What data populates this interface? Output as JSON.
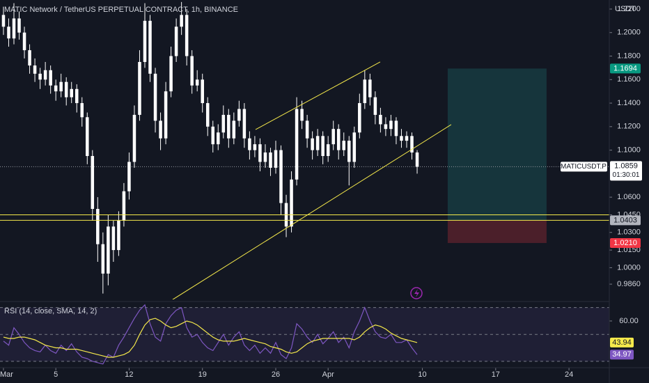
{
  "header": {
    "title": "MATIC Network / TetherUS PERPETUAL CONTRACT, 1h, BINANCE",
    "currency": "USDT"
  },
  "chart_data": [
    {
      "type": "candlestick",
      "color": "#ffffff",
      "line_color": "#f5e94b",
      "x": [
        0,
        0.5,
        1,
        1.5,
        2,
        2.5,
        3,
        3.5,
        4,
        4.5,
        5,
        5.5,
        6,
        6.5,
        7,
        7.5,
        8,
        8.5,
        9,
        9.5,
        10,
        10.5,
        11,
        11.5,
        12,
        12.5,
        13,
        13.5,
        14,
        14.5,
        15,
        15.5,
        16,
        16.5,
        17,
        17.5,
        18,
        18.5,
        19,
        19.5,
        20,
        20.5,
        21,
        21.5,
        22,
        22.5,
        23,
        23.5,
        24,
        24.5,
        25,
        25.5,
        26,
        26.5,
        27,
        27.5,
        28,
        28.5,
        29,
        29.5,
        30,
        30.5,
        31,
        31.5,
        32,
        32.5,
        33,
        33.5,
        34,
        34.5,
        35,
        35.5,
        36,
        36.5,
        37,
        37.5,
        38,
        38.5,
        39,
        39.5
      ],
      "open": [
        1.215,
        1.205,
        1.195,
        1.212,
        1.2,
        1.185,
        1.172,
        1.165,
        1.16,
        1.168,
        1.155,
        1.15,
        1.158,
        1.145,
        1.152,
        1.14,
        1.128,
        1.095,
        1.05,
        1.02,
        0.995,
        1.035,
        1.015,
        1.04,
        1.065,
        1.09,
        1.13,
        1.175,
        1.21,
        1.165,
        1.125,
        1.11,
        1.15,
        1.18,
        1.205,
        1.215,
        1.18,
        1.155,
        1.16,
        1.14,
        1.12,
        1.105,
        1.115,
        1.13,
        1.11,
        1.125,
        1.135,
        1.11,
        1.1,
        1.105,
        1.09,
        1.098,
        1.085,
        1.1,
        1.055,
        1.035,
        1.075,
        1.135,
        1.125,
        1.11,
        1.1,
        1.112,
        1.095,
        1.105,
        1.118,
        1.1,
        1.108,
        1.09,
        1.115,
        1.14,
        1.16,
        1.145,
        1.13,
        1.122,
        1.118,
        1.125,
        1.112,
        1.108,
        1.112,
        1.098
      ],
      "high": [
        1.222,
        1.212,
        1.225,
        1.218,
        1.205,
        1.19,
        1.178,
        1.17,
        1.175,
        1.172,
        1.16,
        1.165,
        1.162,
        1.158,
        1.156,
        1.145,
        1.132,
        1.1,
        1.06,
        1.03,
        1.045,
        1.04,
        1.048,
        1.072,
        1.098,
        1.138,
        1.185,
        1.225,
        1.215,
        1.17,
        1.132,
        1.158,
        1.188,
        1.212,
        1.226,
        1.22,
        1.185,
        1.168,
        1.165,
        1.145,
        1.125,
        1.122,
        1.138,
        1.135,
        1.132,
        1.142,
        1.14,
        1.116,
        1.112,
        1.11,
        1.105,
        1.102,
        1.108,
        1.104,
        1.062,
        1.082,
        1.145,
        1.142,
        1.13,
        1.116,
        1.118,
        1.116,
        1.112,
        1.125,
        1.122,
        1.115,
        1.112,
        1.12,
        1.148,
        1.168,
        1.165,
        1.15,
        1.136,
        1.128,
        1.13,
        1.128,
        1.118,
        1.116,
        1.115,
        1.1
      ],
      "low": [
        1.198,
        1.188,
        1.19,
        1.194,
        1.178,
        1.165,
        1.158,
        1.152,
        1.155,
        1.148,
        1.142,
        1.145,
        1.138,
        1.14,
        1.132,
        1.12,
        1.088,
        1.04,
        1.005,
        0.978,
        0.985,
        1.005,
        1.01,
        1.035,
        1.058,
        1.085,
        1.125,
        1.17,
        1.158,
        1.115,
        1.1,
        1.105,
        1.145,
        1.175,
        1.198,
        1.172,
        1.148,
        1.15,
        1.132,
        1.112,
        1.098,
        1.1,
        1.11,
        1.102,
        1.105,
        1.12,
        1.102,
        1.092,
        1.094,
        1.082,
        1.085,
        1.078,
        1.08,
        1.045,
        1.026,
        1.03,
        1.07,
        1.118,
        1.102,
        1.092,
        1.095,
        1.088,
        1.09,
        1.1,
        1.092,
        1.095,
        1.07,
        1.085,
        1.11,
        1.135,
        1.138,
        1.122,
        1.115,
        1.112,
        1.112,
        1.105,
        1.102,
        1.102,
        1.092,
        1.08
      ],
      "close": [
        1.205,
        1.195,
        1.212,
        1.2,
        1.185,
        1.172,
        1.165,
        1.16,
        1.168,
        1.155,
        1.15,
        1.158,
        1.145,
        1.152,
        1.14,
        1.128,
        1.095,
        1.05,
        1.02,
        0.995,
        1.035,
        1.015,
        1.04,
        1.065,
        1.09,
        1.13,
        1.175,
        1.21,
        1.165,
        1.125,
        1.11,
        1.15,
        1.18,
        1.205,
        1.215,
        1.18,
        1.155,
        1.16,
        1.14,
        1.12,
        1.105,
        1.115,
        1.13,
        1.11,
        1.125,
        1.135,
        1.11,
        1.1,
        1.105,
        1.09,
        1.098,
        1.085,
        1.1,
        1.055,
        1.035,
        1.075,
        1.135,
        1.125,
        1.11,
        1.1,
        1.112,
        1.095,
        1.105,
        1.118,
        1.1,
        1.108,
        1.09,
        1.115,
        1.14,
        1.16,
        1.145,
        1.13,
        1.122,
        1.118,
        1.125,
        1.112,
        1.108,
        1.112,
        1.098,
        1.0859
      ],
      "xlim": [
        -0.33,
        57.85
      ],
      "xticks": [
        {
          "value": 0,
          "label": "Mar"
        },
        5,
        12,
        19,
        26,
        {
          "value": 31,
          "label": "Apr"
        },
        {
          "value": 40,
          "label": "10"
        },
        {
          "value": 47,
          "label": "17"
        },
        {
          "value": 54,
          "label": "24"
        }
      ],
      "ylim": [
        0.973,
        1.2277
      ],
      "yticks": [
        {
          "value": 1.22,
          "label": "1.2200"
        },
        {
          "value": 1.2,
          "label": "1.2000"
        },
        {
          "value": 1.18,
          "label": "1.1800"
        },
        {
          "value": 1.16,
          "label": "1.1600"
        },
        {
          "value": 1.14,
          "label": "1.1400"
        },
        {
          "value": 1.12,
          "label": "1.1200"
        },
        {
          "value": 1.1,
          "label": "1.1000"
        },
        {
          "value": 1.06,
          "label": "1.0600"
        },
        {
          "value": 1.045,
          "label": "1.0450"
        },
        {
          "value": 1.03,
          "label": "1.0300"
        },
        {
          "value": 1.015,
          "label": "1.0150"
        },
        {
          "value": 1,
          "label": "1.0000"
        },
        {
          "value": 0.986,
          "label": "0.9860"
        }
      ],
      "hlines": [
        1.045,
        1.0403
      ],
      "trendlines": [
        {
          "x": [
            24.07,
            35.97
          ],
          "y": [
            1.1175,
            1.175
          ]
        },
        {
          "x": [
            15.96,
            42.75
          ],
          "y": [
            0.9718,
            1.1217
          ]
        }
      ],
      "position": {
        "x": [
          42.42,
          51.86
        ],
        "target": 1.1694,
        "entry": 1.0403,
        "stop": {
          "value": 1.021,
          "label": "1.0210"
        }
      },
      "last_price": {
        "symbol": "MATICUSDT.P",
        "value": 1.0859,
        "countdown": "01:30:01"
      }
    },
    {
      "type": "rsi",
      "title": "RSI (14, close, SMA, 14, 2)",
      "series": [
        {
          "name": "RSI",
          "color": "#7e57c2",
          "values": [
            45,
            42,
            55,
            50,
            44,
            40,
            38,
            37,
            42,
            38,
            36,
            42,
            38,
            43,
            37,
            33,
            32,
            30,
            29,
            28,
            35,
            33,
            42,
            48,
            55,
            62,
            68,
            72,
            58,
            48,
            45,
            58,
            64,
            68,
            70,
            55,
            48,
            50,
            44,
            40,
            38,
            44,
            50,
            42,
            48,
            52,
            42,
            38,
            42,
            36,
            40,
            36,
            44,
            35,
            32,
            40,
            58,
            54,
            48,
            44,
            50,
            43,
            47,
            52,
            44,
            48,
            40,
            52,
            60,
            70,
            60,
            52,
            48,
            47,
            50,
            44,
            44,
            46,
            40,
            34.97
          ]
        },
        {
          "name": "RSI-based MA",
          "color": "#f5e94b",
          "values": [
            48,
            47,
            47,
            48,
            48,
            47,
            46,
            44,
            42,
            41,
            40,
            40,
            39,
            39,
            39,
            38,
            37,
            36,
            35,
            34,
            33,
            33,
            34,
            35,
            37,
            42,
            50,
            57,
            61,
            62,
            60,
            57,
            55,
            56,
            58,
            60,
            59,
            57,
            54,
            51,
            48,
            46,
            45,
            45,
            45,
            46,
            47,
            46,
            45,
            44,
            43,
            41,
            40,
            39,
            37,
            36,
            37,
            40,
            43,
            45,
            46,
            47,
            47,
            47,
            47,
            47,
            47,
            46,
            48,
            52,
            55,
            57,
            56,
            54,
            51,
            49,
            47,
            46,
            45,
            43.94
          ]
        }
      ],
      "ylim": [
        26.8,
        71.9
      ],
      "yticks": [
        {
          "value": 60,
          "label": "60.00"
        }
      ],
      "levels": [
        70,
        50,
        30
      ]
    }
  ]
}
